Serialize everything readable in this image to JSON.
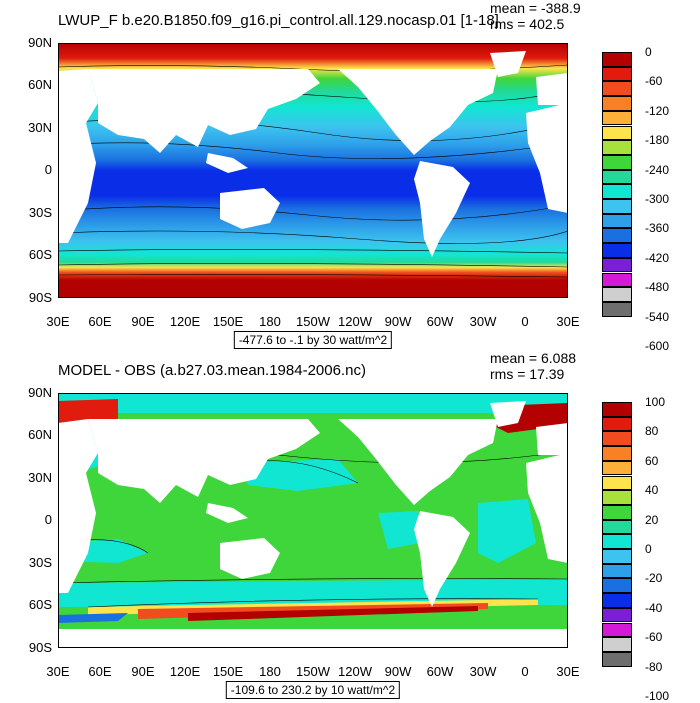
{
  "panels": [
    {
      "title": "LWUP_F b.e20.B1850.f09_g16.pi_control.all.129.nocasp.01 [1-18]",
      "mean_label": "mean = -388.9",
      "rms_label": "rms = 402.5",
      "range_label": "-477.6 to -.1 by 30 watt/m^2",
      "colorbar_labels": [
        "0",
        "-60",
        "-120",
        "-180",
        "-240",
        "-300",
        "-360",
        "-420",
        "-480",
        "-540",
        "-600"
      ],
      "colorbar_colors": [
        "#b30000",
        "#e11b0e",
        "#f04c1d",
        "#f98025",
        "#fcb03a",
        "#fde44c",
        "#a8e03c",
        "#3ed63a",
        "#22d999",
        "#11e6d2",
        "#3dc3ef",
        "#2e9fe9",
        "#1a70e0",
        "#0a2ee8",
        "#7b1fd6",
        "#d41ad6",
        "#cfcfcf",
        "#6e6e6e"
      ]
    },
    {
      "title": "MODEL - OBS (a.b27.03.mean.1984-2006.nc)",
      "mean_label": "mean = 6.088",
      "rms_label": "rms = 17.39",
      "range_label": "-109.6 to 230.2 by 10 watt/m^2",
      "colorbar_labels": [
        "100",
        "80",
        "60",
        "40",
        "20",
        "0",
        "-20",
        "-40",
        "-60",
        "-80",
        "-100"
      ],
      "colorbar_colors": [
        "#b30000",
        "#e11b0e",
        "#f04c1d",
        "#f98025",
        "#fcb03a",
        "#fde44c",
        "#a8e03c",
        "#3ed63a",
        "#22d999",
        "#11e6d2",
        "#3dc3ef",
        "#2e9fe9",
        "#1a70e0",
        "#0a2ee8",
        "#7b1fd6",
        "#d41ad6",
        "#cfcfcf",
        "#6e6e6e"
      ]
    }
  ],
  "axes": {
    "lat_labels": [
      "90N",
      "60N",
      "30N",
      "0",
      "30S",
      "60S",
      "90S"
    ],
    "lon_labels": [
      "30E",
      "60E",
      "90E",
      "120E",
      "150E",
      "180",
      "150W",
      "120W",
      "90W",
      "60W",
      "30W",
      "0",
      "30E"
    ]
  },
  "colors": {
    "land": "#ffffff",
    "contour": "#000000"
  },
  "chart_data": [
    {
      "type": "heatmap",
      "title": "LWUP_F b.e20.B1850.f09_g16.pi_control.all.129.nocasp.01 [1-18]",
      "projection": "cylindrical equidistant",
      "xlim": [
        "30E",
        "30E"
      ],
      "ylim": [
        -90,
        90
      ],
      "contour_interval": 30,
      "data_min": -477.6,
      "data_max": -0.1,
      "units": "watt/m^2",
      "mean": -388.9,
      "rms": 402.5,
      "field_profile_by_latitude": [
        {
          "lat": 85,
          "value": -40
        },
        {
          "lat": 70,
          "value": -200
        },
        {
          "lat": 55,
          "value": -330
        },
        {
          "lat": 40,
          "value": -370
        },
        {
          "lat": 25,
          "value": -420
        },
        {
          "lat": 10,
          "value": -460
        },
        {
          "lat": 0,
          "value": -460
        },
        {
          "lat": -10,
          "value": -450
        },
        {
          "lat": -25,
          "value": -430
        },
        {
          "lat": -40,
          "value": -380
        },
        {
          "lat": -55,
          "value": -320
        },
        {
          "lat": -65,
          "value": -140
        },
        {
          "lat": -75,
          "value": -40
        }
      ]
    },
    {
      "type": "heatmap",
      "title": "MODEL - OBS (a.b27.03.mean.1984-2006.nc)",
      "projection": "cylindrical equidistant",
      "xlim": [
        "30E",
        "30E"
      ],
      "ylim": [
        -90,
        90
      ],
      "contour_interval": 10,
      "data_min": -109.6,
      "data_max": 230.2,
      "units": "watt/m^2",
      "mean": 6.088,
      "rms": 17.39,
      "field_profile_by_latitude": [
        {
          "lat": 80,
          "value": 0
        },
        {
          "lat": 70,
          "value": 30
        },
        {
          "lat": 50,
          "value": 10
        },
        {
          "lat": 30,
          "value": 10
        },
        {
          "lat": 0,
          "value": 10
        },
        {
          "lat": -30,
          "value": 5
        },
        {
          "lat": -50,
          "value": 0
        },
        {
          "lat": -58,
          "value": 40
        },
        {
          "lat": -63,
          "value": 100
        },
        {
          "lat": -66,
          "value": -50
        }
      ]
    }
  ]
}
